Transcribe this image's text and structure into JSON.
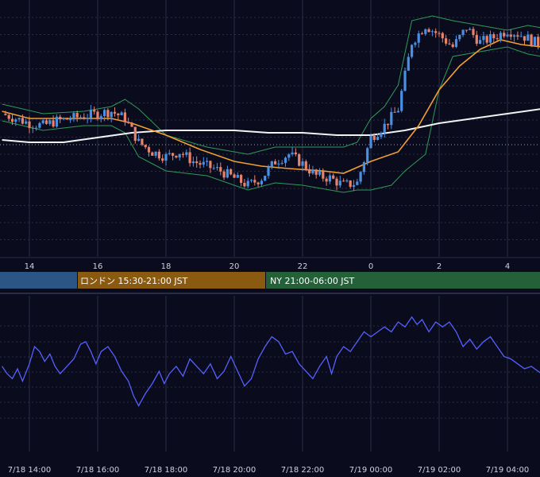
{
  "colors": {
    "background": "#0b0b1e",
    "grid": "#2a2d44",
    "candle_up": "#4a90e2",
    "candle_down": "#e8836a",
    "bollinger": "#2e9b57",
    "ma_orange": "#f0a030",
    "ma_white": "#f2f2f2",
    "oscillator": "#5560ff",
    "session_tokyo": "#2b5585",
    "session_london": "#8a5a10",
    "session_ny": "#246038",
    "current_price_line": "#9aa0b0"
  },
  "main_x_ticks": [
    "14",
    "16",
    "18",
    "20",
    "22",
    "0",
    "2",
    "4"
  ],
  "sessions": [
    {
      "name": "tokyo",
      "label": ""
    },
    {
      "name": "london",
      "label": "ロンドン 15:30-21:00 JST"
    },
    {
      "name": "ny",
      "label": "NY 21:00-06:00 JST"
    }
  ],
  "bottom_x_ticks": [
    "7/18 14:00",
    "7/18 16:00",
    "7/18 18:00",
    "7/18 20:00",
    "7/18 22:00",
    "7/19 00:00",
    "7/19 02:00",
    "7/19 04:00"
  ],
  "chart_data": [
    {
      "type": "candlestick",
      "x_hours": [
        14,
        16,
        18,
        20,
        22,
        24,
        26,
        28
      ],
      "close_path": [
        [
          13.2,
          60
        ],
        [
          13.6,
          58
        ],
        [
          14.0,
          56
        ],
        [
          14.4,
          55
        ],
        [
          14.8,
          57
        ],
        [
          15.2,
          58
        ],
        [
          15.6,
          59
        ],
        [
          16.0,
          60
        ],
        [
          16.4,
          61
        ],
        [
          16.8,
          58
        ],
        [
          17.2,
          48
        ],
        [
          17.6,
          44
        ],
        [
          18.0,
          42
        ],
        [
          18.4,
          44
        ],
        [
          18.8,
          40
        ],
        [
          19.2,
          38
        ],
        [
          19.6,
          36
        ],
        [
          20.0,
          33
        ],
        [
          20.4,
          30
        ],
        [
          20.8,
          33
        ],
        [
          21.2,
          40
        ],
        [
          21.6,
          43
        ],
        [
          22.0,
          39
        ],
        [
          22.4,
          34
        ],
        [
          22.8,
          33
        ],
        [
          23.2,
          30
        ],
        [
          23.6,
          31
        ],
        [
          24.0,
          50
        ],
        [
          24.4,
          55
        ],
        [
          24.8,
          62
        ],
        [
          25.2,
          90
        ],
        [
          25.6,
          97
        ],
        [
          26.0,
          93
        ],
        [
          26.4,
          88
        ],
        [
          26.8,
          96
        ],
        [
          27.2,
          90
        ],
        [
          27.6,
          92
        ],
        [
          28.0,
          95
        ],
        [
          28.4,
          93
        ],
        [
          28.8,
          90
        ],
        [
          29.0,
          89
        ]
      ],
      "bb_upper": [
        [
          13.2,
          64
        ],
        [
          14.4,
          60
        ],
        [
          15.6,
          61
        ],
        [
          16.4,
          63
        ],
        [
          16.8,
          66
        ],
        [
          17.2,
          62
        ],
        [
          18.0,
          51
        ],
        [
          19.2,
          46
        ],
        [
          20.4,
          43
        ],
        [
          21.2,
          46
        ],
        [
          22.0,
          46
        ],
        [
          23.2,
          46
        ],
        [
          23.6,
          48
        ],
        [
          24.0,
          58
        ],
        [
          24.4,
          63
        ],
        [
          24.8,
          72
        ],
        [
          25.2,
          99
        ],
        [
          25.8,
          101
        ],
        [
          26.4,
          99
        ],
        [
          27.2,
          97
        ],
        [
          28.0,
          95
        ],
        [
          28.6,
          97
        ],
        [
          29.0,
          96
        ]
      ],
      "bb_lower": [
        [
          13.2,
          57
        ],
        [
          14.4,
          53
        ],
        [
          15.6,
          55
        ],
        [
          16.4,
          55
        ],
        [
          16.8,
          52
        ],
        [
          17.2,
          42
        ],
        [
          18.0,
          36
        ],
        [
          19.2,
          34
        ],
        [
          20.4,
          28
        ],
        [
          21.2,
          31
        ],
        [
          22.0,
          30
        ],
        [
          23.2,
          27
        ],
        [
          23.6,
          28
        ],
        [
          24.0,
          28
        ],
        [
          24.6,
          30
        ],
        [
          25.0,
          36
        ],
        [
          25.6,
          43
        ],
        [
          26.0,
          70
        ],
        [
          26.4,
          84
        ],
        [
          27.2,
          86
        ],
        [
          28.0,
          88
        ],
        [
          28.6,
          85
        ],
        [
          29.0,
          84
        ]
      ],
      "ma_short": [
        [
          13.2,
          61
        ],
        [
          14.0,
          58
        ],
        [
          14.8,
          58
        ],
        [
          15.6,
          58
        ],
        [
          16.4,
          58
        ],
        [
          17.0,
          56
        ],
        [
          18.0,
          51
        ],
        [
          19.0,
          45
        ],
        [
          20.0,
          40
        ],
        [
          20.8,
          38
        ],
        [
          21.6,
          37
        ],
        [
          22.6,
          36
        ],
        [
          23.2,
          35
        ],
        [
          24.0,
          40
        ],
        [
          24.8,
          44
        ],
        [
          25.4,
          55
        ],
        [
          26.0,
          70
        ],
        [
          26.6,
          80
        ],
        [
          27.2,
          87
        ],
        [
          27.8,
          91
        ],
        [
          28.4,
          89
        ],
        [
          29.0,
          88
        ]
      ],
      "ma_long": [
        [
          13.2,
          49
        ],
        [
          14.0,
          48
        ],
        [
          15.0,
          48
        ],
        [
          16.0,
          50
        ],
        [
          17.0,
          52
        ],
        [
          18.0,
          53
        ],
        [
          19.0,
          53
        ],
        [
          20.0,
          53
        ],
        [
          21.0,
          52
        ],
        [
          22.0,
          52
        ],
        [
          23.0,
          51
        ],
        [
          24.0,
          51
        ],
        [
          25.0,
          53
        ],
        [
          26.0,
          56
        ],
        [
          27.0,
          58
        ],
        [
          28.0,
          60
        ],
        [
          29.0,
          62
        ]
      ],
      "current_price": 47
    },
    {
      "type": "line",
      "series": [
        {
          "values": [
            [
              13.2,
              52
            ],
            [
              13.35,
              49
            ],
            [
              13.5,
              47
            ],
            [
              13.65,
              51
            ],
            [
              13.8,
              46
            ],
            [
              14.0,
              53
            ],
            [
              14.15,
              60
            ],
            [
              14.3,
              58
            ],
            [
              14.45,
              54
            ],
            [
              14.6,
              57
            ],
            [
              14.75,
              52
            ],
            [
              14.9,
              49
            ],
            [
              15.1,
              52
            ],
            [
              15.3,
              55
            ],
            [
              15.5,
              61
            ],
            [
              15.65,
              62
            ],
            [
              15.8,
              58
            ],
            [
              15.95,
              53
            ],
            [
              16.1,
              58
            ],
            [
              16.3,
              60
            ],
            [
              16.5,
              56
            ],
            [
              16.7,
              50
            ],
            [
              16.9,
              46
            ],
            [
              17.05,
              40
            ],
            [
              17.2,
              36
            ],
            [
              17.4,
              41
            ],
            [
              17.6,
              45
            ],
            [
              17.8,
              50
            ],
            [
              17.95,
              45
            ],
            [
              18.1,
              49
            ],
            [
              18.3,
              52
            ],
            [
              18.5,
              48
            ],
            [
              18.7,
              55
            ],
            [
              18.9,
              52
            ],
            [
              19.1,
              49
            ],
            [
              19.3,
              53
            ],
            [
              19.5,
              47
            ],
            [
              19.7,
              50
            ],
            [
              19.9,
              56
            ],
            [
              20.1,
              50
            ],
            [
              20.3,
              44
            ],
            [
              20.5,
              47
            ],
            [
              20.7,
              55
            ],
            [
              20.9,
              60
            ],
            [
              21.1,
              64
            ],
            [
              21.3,
              62
            ],
            [
              21.5,
              57
            ],
            [
              21.7,
              58
            ],
            [
              21.9,
              53
            ],
            [
              22.1,
              50
            ],
            [
              22.3,
              47
            ],
            [
              22.5,
              52
            ],
            [
              22.7,
              56
            ],
            [
              22.85,
              49
            ],
            [
              23.0,
              56
            ],
            [
              23.2,
              60
            ],
            [
              23.4,
              58
            ],
            [
              23.6,
              62
            ],
            [
              23.8,
              66
            ],
            [
              24.0,
              64
            ],
            [
              24.2,
              66
            ],
            [
              24.4,
              68
            ],
            [
              24.6,
              66
            ],
            [
              24.8,
              70
            ],
            [
              25.0,
              68
            ],
            [
              25.2,
              72
            ],
            [
              25.35,
              69
            ],
            [
              25.5,
              71
            ],
            [
              25.7,
              66
            ],
            [
              25.9,
              70
            ],
            [
              26.1,
              68
            ],
            [
              26.3,
              70
            ],
            [
              26.5,
              66
            ],
            [
              26.7,
              60
            ],
            [
              26.9,
              63
            ],
            [
              27.1,
              59
            ],
            [
              27.3,
              62
            ],
            [
              27.5,
              64
            ],
            [
              27.7,
              60
            ],
            [
              27.9,
              56
            ],
            [
              28.1,
              55
            ],
            [
              28.3,
              53
            ],
            [
              28.5,
              51
            ],
            [
              28.7,
              52
            ],
            [
              28.9,
              50
            ],
            [
              29.0,
              49
            ]
          ]
        }
      ]
    }
  ]
}
